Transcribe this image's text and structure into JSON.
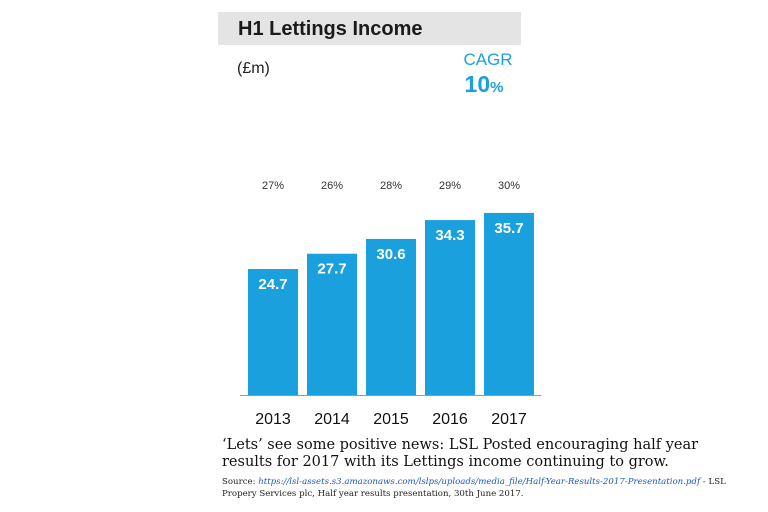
{
  "header": {
    "title": "H1 Lettings Income",
    "unit": "(£m)",
    "cagr_label": "CAGR",
    "cagr_value": "10",
    "cagr_suffix": "%"
  },
  "colors": {
    "bar": "#1aa0dc",
    "accent": "#1aa0dc",
    "title_bg": "#e4e4e4",
    "bar_label": "#ffffff"
  },
  "chart_data": {
    "type": "bar",
    "title": "H1 Lettings Income",
    "ylabel": "(£m)",
    "xlabel": "",
    "categories": [
      "2013",
      "2014",
      "2015",
      "2016",
      "2017"
    ],
    "values": [
      24.7,
      27.7,
      30.6,
      34.3,
      35.7
    ],
    "value_labels": [
      "24.7",
      "27.7",
      "30.6",
      "34.3",
      "35.7"
    ],
    "percent_labels": [
      "27%",
      "26%",
      "28%",
      "29%",
      "30%"
    ],
    "ylim": [
      0,
      40
    ],
    "grid": false,
    "annotations": [
      "CAGR 10%"
    ]
  },
  "caption": {
    "text": "‘Lets’ see some positive news: LSL Posted encouraging half year results for 2017 with its Lettings income continuing to grow."
  },
  "source": {
    "prefix": "Source: ",
    "url": "https://lsl-assets.s3.amazonaws.com/lslps/uploads/media_file/Half-Year-Results-2017-Presentation.pdf",
    "suffix": " - LSL Propery Services plc, Half year results presentation, 30th June 2017."
  }
}
